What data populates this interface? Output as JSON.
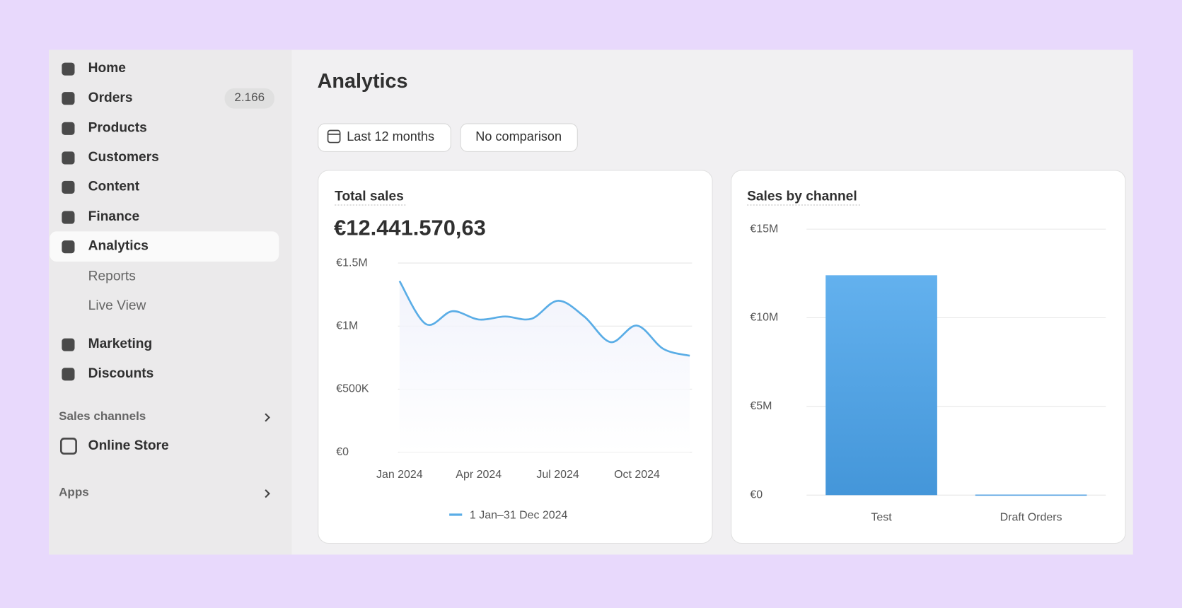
{
  "sidebar": {
    "items": [
      {
        "label": "Home"
      },
      {
        "label": "Orders",
        "badge": "2.166"
      },
      {
        "label": "Products"
      },
      {
        "label": "Customers"
      },
      {
        "label": "Content"
      },
      {
        "label": "Finance"
      },
      {
        "label": "Analytics",
        "active": true,
        "children": [
          "Reports",
          "Live View"
        ]
      },
      {
        "label": "Marketing"
      },
      {
        "label": "Discounts"
      }
    ],
    "sections": [
      {
        "title": "Sales channels",
        "items": [
          "Online Store"
        ]
      },
      {
        "title": "Apps"
      }
    ]
  },
  "header": {
    "title": "Analytics",
    "buttons": [
      "Last 12 months",
      "No comparison"
    ]
  },
  "cards": [
    {
      "title": "Total sales",
      "value": "€12.441.570,63"
    },
    {
      "title": "Sales by channel"
    }
  ],
  "chart_data": [
    {
      "type": "line",
      "categories": [
        "Jan 2024",
        null,
        null,
        "Apr 2024",
        null,
        null,
        "Jul 2024",
        null,
        null,
        "Oct 2024",
        null,
        null
      ],
      "series": [
        {
          "name": "1 Jan–31 Dec 2024",
          "color": "#5aade6",
          "values": [
            1357000,
            1016000,
            1118000,
            1052000,
            1076000,
            1058000,
            1201000,
            1076000,
            873000,
            1004000,
            819000,
            765000
          ]
        }
      ],
      "ylim": [
        0,
        1500000
      ],
      "yticks": [
        {
          "value": 0,
          "label": "€0"
        },
        {
          "value": 500000,
          "label": "€500K"
        },
        {
          "value": 1000000,
          "label": "€1M"
        },
        {
          "value": 1500000,
          "label": "€1.5M"
        }
      ],
      "grid": true
    },
    {
      "type": "bar",
      "categories": [
        "Test",
        "Draft Orders"
      ],
      "values": [
        12400000,
        30000
      ],
      "color": "#4c9de0",
      "ylim": [
        0,
        15000000
      ],
      "yticks": [
        {
          "value": 0,
          "label": "€0"
        },
        {
          "value": 5000000,
          "label": "€5M"
        },
        {
          "value": 10000000,
          "label": "€10M"
        },
        {
          "value": 15000000,
          "label": "€15M"
        }
      ],
      "grid": true
    }
  ]
}
